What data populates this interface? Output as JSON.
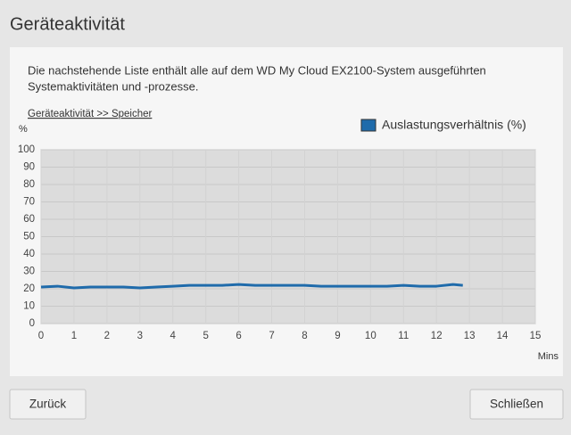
{
  "header": {
    "title": "Geräteaktivität"
  },
  "panel": {
    "description": [
      "Die nachstehende Liste enthält alle auf dem WD My Cloud EX2100-System ausgeführten",
      "Systemaktivitäten und -prozesse."
    ],
    "link": "Geräteaktivität >> Speicher"
  },
  "chart_data": {
    "type": "line",
    "y_label": "%",
    "x_label": "Mins",
    "x": [
      0,
      0.5,
      1,
      1.5,
      2,
      2.5,
      3,
      3.5,
      4,
      4.5,
      5,
      5.5,
      6,
      6.5,
      7,
      7.5,
      8,
      8.5,
      9,
      9.5,
      10,
      10.5,
      11,
      11.5,
      12,
      12.5,
      12.8
    ],
    "series": [
      {
        "name": "Auslastungsverhältnis (%)",
        "color": "#1f6bab",
        "values": [
          21,
          21.5,
          20.5,
          21,
          21,
          21,
          20.5,
          21,
          21.5,
          22,
          22,
          22,
          22.5,
          22,
          22,
          22,
          22,
          21.5,
          21.5,
          21.5,
          21.5,
          21.5,
          22,
          21.5,
          21.5,
          22.5,
          22
        ]
      }
    ],
    "xlim": [
      0,
      15
    ],
    "xticks": [
      0,
      1,
      2,
      3,
      4,
      5,
      6,
      7,
      8,
      9,
      10,
      11,
      12,
      13,
      14,
      15
    ],
    "ylim": [
      0,
      100
    ],
    "yticks": [
      0,
      10,
      20,
      30,
      40,
      50,
      60,
      70,
      80,
      90,
      100
    ],
    "grid": true,
    "legend": "top-right"
  },
  "buttons": [
    "Zurück",
    "Schließen"
  ]
}
